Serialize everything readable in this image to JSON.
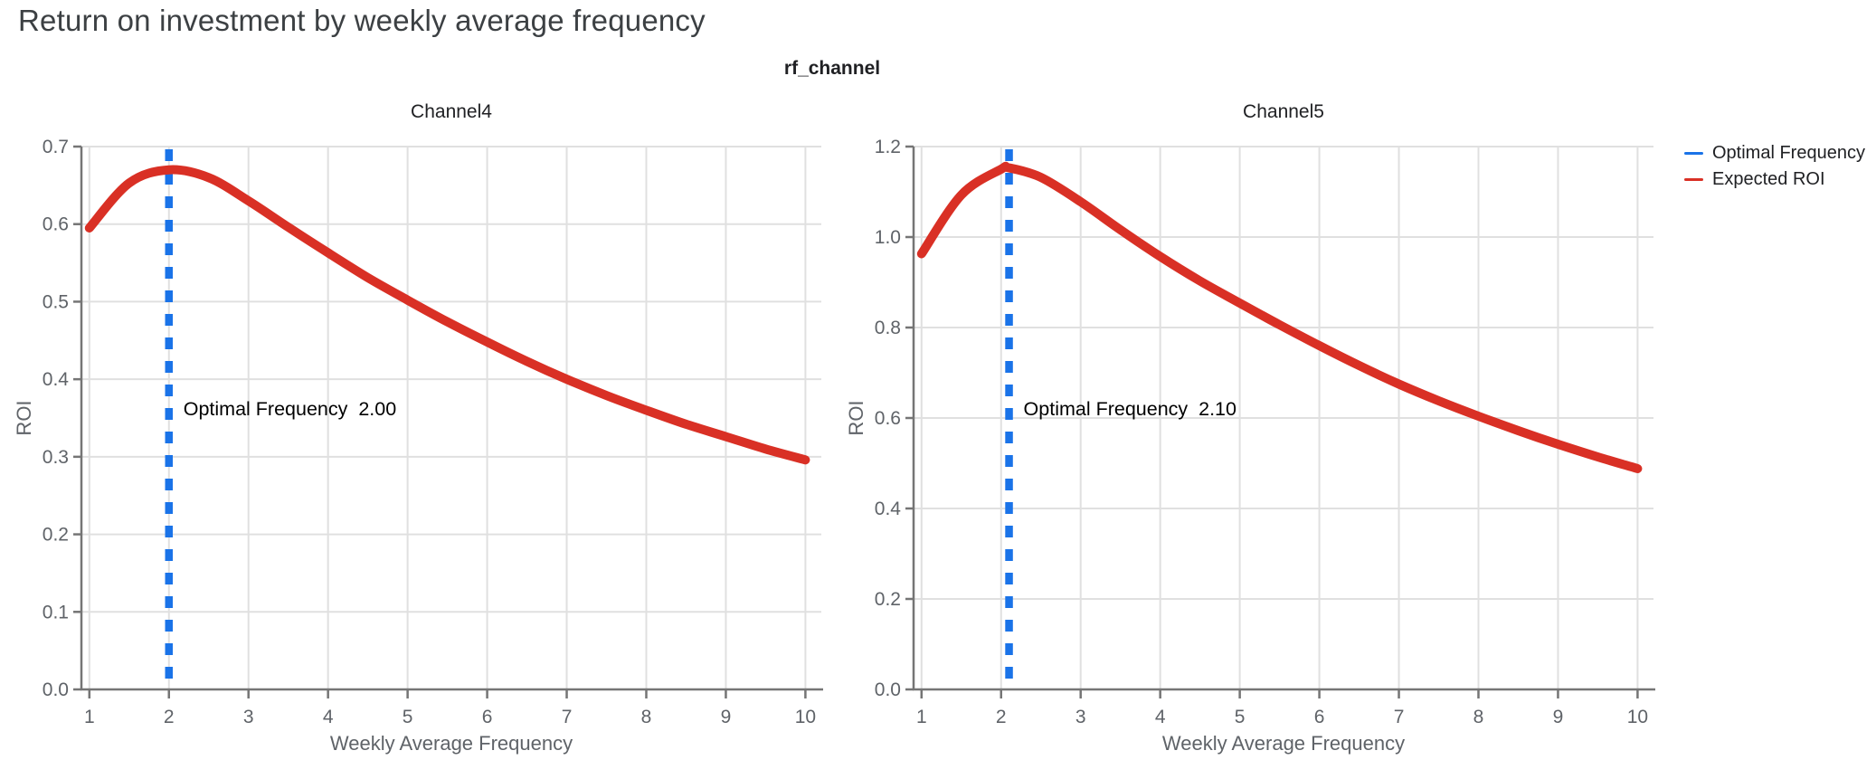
{
  "page": {
    "title": "Return on investment by weekly average frequency",
    "facet_title": "rf_channel"
  },
  "colors": {
    "expected_roi_red": "#d93025",
    "optimal_frequency_blue": "#1a73e8",
    "gridline": "#e0e0e0",
    "axis": "#757575",
    "tick_label": "#5f6368",
    "title_gray": "#3c4043",
    "text_black": "#202124",
    "annotation": "#000000"
  },
  "legend": {
    "items": [
      {
        "label": "Optimal Frequency",
        "color": "#1a73e8"
      },
      {
        "label": "Expected ROI",
        "color": "#d93025"
      }
    ]
  },
  "chart_data": [
    {
      "type": "line",
      "title": "Channel4",
      "xlabel": "Weekly Average Frequency",
      "ylabel": "ROI",
      "xlim": [
        0.9,
        10.2
      ],
      "ylim": [
        0,
        0.7
      ],
      "x_ticks": [
        1,
        2,
        3,
        4,
        5,
        6,
        7,
        8,
        9,
        10
      ],
      "x_tick_labels": [
        "1",
        "2",
        "3",
        "4",
        "5",
        "6",
        "7",
        "8",
        "9",
        "10"
      ],
      "y_ticks": [
        0.0,
        0.1,
        0.2,
        0.3,
        0.4,
        0.5,
        0.6,
        0.7
      ],
      "y_tick_labels": [
        "0.0",
        "0.1",
        "0.2",
        "0.3",
        "0.4",
        "0.5",
        "0.6",
        "0.7"
      ],
      "grid": true,
      "optimal_frequency": 2.0,
      "annotation": {
        "label": "Optimal Frequency",
        "value": "2.00"
      },
      "series": [
        {
          "name": "Expected ROI",
          "color": "#d93025",
          "x": [
            1,
            1.5,
            2,
            2.5,
            3,
            3.5,
            4,
            4.5,
            5,
            5.5,
            6,
            6.5,
            7,
            7.5,
            8,
            8.5,
            9,
            9.5,
            10
          ],
          "y": [
            0.595,
            0.653,
            0.67,
            0.66,
            0.63,
            0.596,
            0.563,
            0.531,
            0.502,
            0.474,
            0.448,
            0.423,
            0.4,
            0.379,
            0.36,
            0.342,
            0.326,
            0.31,
            0.296
          ]
        }
      ],
      "optimal_line": {
        "name": "Optimal Frequency",
        "color": "#1a73e8",
        "x": 2.0
      }
    },
    {
      "type": "line",
      "title": "Channel5",
      "xlabel": "Weekly Average Frequency",
      "ylabel": "ROI",
      "xlim": [
        0.9,
        10.2
      ],
      "ylim": [
        0,
        1.2
      ],
      "x_ticks": [
        1,
        2,
        3,
        4,
        5,
        6,
        7,
        8,
        9,
        10
      ],
      "x_tick_labels": [
        "1",
        "2",
        "3",
        "4",
        "5",
        "6",
        "7",
        "8",
        "9",
        "10"
      ],
      "y_ticks": [
        0.0,
        0.2,
        0.4,
        0.6,
        0.8,
        1.0,
        1.2
      ],
      "y_tick_labels": [
        "0.0",
        "0.2",
        "0.4",
        "0.6",
        "0.8",
        "1.0",
        "1.2"
      ],
      "grid": true,
      "optimal_frequency": 2.1,
      "annotation": {
        "label": "Optimal Frequency",
        "value": "2.10"
      },
      "series": [
        {
          "name": "Expected ROI",
          "color": "#d93025",
          "x": [
            1,
            1.5,
            2,
            2.1,
            2.5,
            3,
            3.5,
            4,
            4.5,
            5,
            5.5,
            6,
            6.5,
            7,
            7.5,
            8,
            8.5,
            9,
            9.5,
            10
          ],
          "y": [
            0.963,
            1.093,
            1.15,
            1.153,
            1.132,
            1.078,
            1.016,
            0.957,
            0.903,
            0.854,
            0.806,
            0.76,
            0.716,
            0.675,
            0.638,
            0.604,
            0.572,
            0.542,
            0.514,
            0.488
          ]
        }
      ],
      "optimal_line": {
        "name": "Optimal Frequency",
        "color": "#1a73e8",
        "x": 2.1
      }
    }
  ]
}
